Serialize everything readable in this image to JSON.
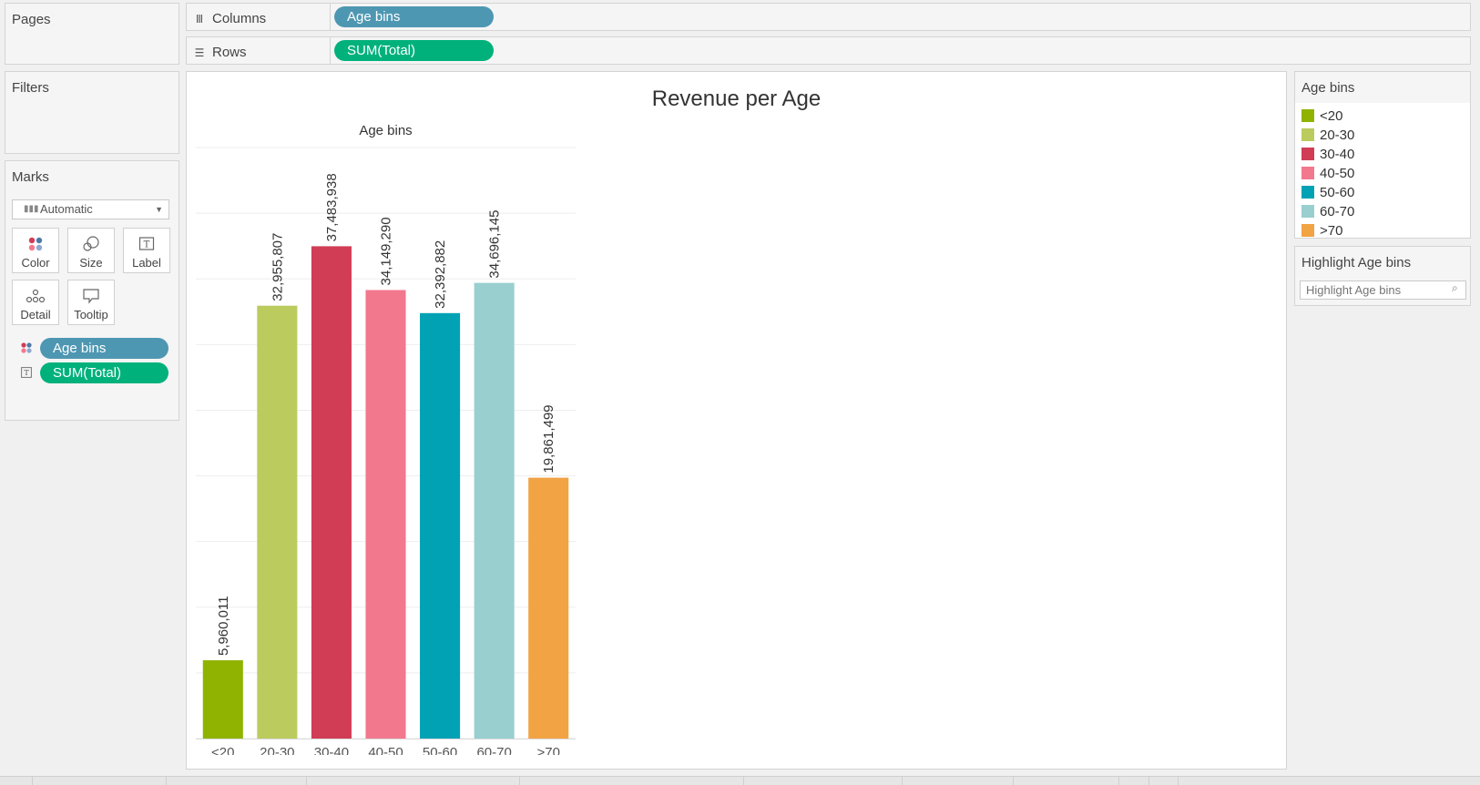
{
  "shelves": {
    "pages_label": "Pages",
    "columns_label": "Columns",
    "columns_pill": "Age bins",
    "rows_label": "Rows",
    "rows_pill": "SUM(Total)"
  },
  "filters": {
    "label": "Filters"
  },
  "marks": {
    "label": "Marks",
    "mark_type": "Automatic",
    "buttons": {
      "color": "Color",
      "size": "Size",
      "label": "Label",
      "detail": "Detail",
      "tooltip": "Tooltip"
    },
    "fields": [
      {
        "text": "Age bins",
        "icon": "color-dots-icon"
      },
      {
        "text": "SUM(Total)",
        "icon": "text-label-icon"
      }
    ]
  },
  "viz": {
    "title": "Revenue per Age",
    "header": "Age bins"
  },
  "chart_data": {
    "type": "bar",
    "title": "Revenue per Age",
    "xlabel": "Age bins",
    "ylabel": "",
    "categories": [
      "<20",
      "20-30",
      "30-40",
      "40-50",
      "50-60",
      "60-70",
      ">70"
    ],
    "values": [
      5960011,
      32955807,
      37483938,
      34149290,
      32392882,
      34696145,
      19861499
    ],
    "data_labels": [
      "5,960,011",
      "32,955,807",
      "37,483,938",
      "34,149,290",
      "32,392,882",
      "34,696,145",
      "19,861,499"
    ],
    "colors": [
      "#8fb300",
      "#bbcb5e",
      "#d03d55",
      "#f2788d",
      "#00a2b4",
      "#99cfcf",
      "#f2a344"
    ],
    "ylim": [
      0,
      45000000
    ],
    "grid": true
  },
  "legend": {
    "title": "Age bins",
    "items": [
      {
        "label": "<20",
        "color": "#8fb300"
      },
      {
        "label": "20-30",
        "color": "#bbcb5e"
      },
      {
        "label": "30-40",
        "color": "#d03d55"
      },
      {
        "label": "40-50",
        "color": "#f2788d"
      },
      {
        "label": "50-60",
        "color": "#00a2b4"
      },
      {
        "label": "60-70",
        "color": "#99cfcf"
      },
      {
        "label": ">70",
        "color": "#f2a344"
      }
    ]
  },
  "highlight": {
    "title": "Highlight Age bins",
    "placeholder": "Highlight Age bins"
  },
  "colors": {
    "pill_dimension": "#4e97b2",
    "pill_measure": "#00b17c"
  }
}
